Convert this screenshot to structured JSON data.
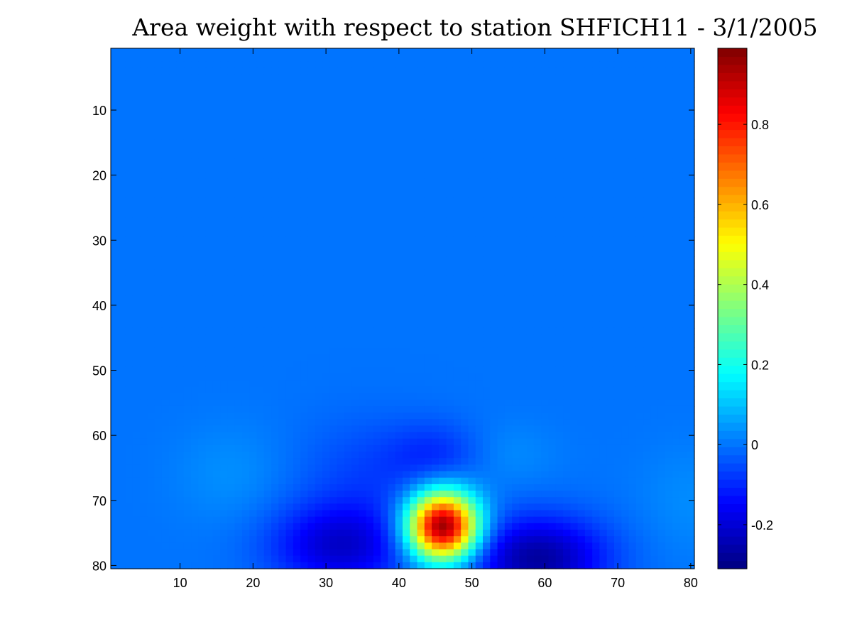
{
  "chart_data": {
    "type": "heatmap",
    "title": "Area weight with respect to station SHFICH11 - 3/1/2005",
    "xlabel": "",
    "ylabel": "",
    "xlim": [
      0.5,
      80.5
    ],
    "ylim": [
      0.5,
      80.5
    ],
    "y_direction": "reversed",
    "grid": false,
    "colormap": "jet",
    "x_ticks": [
      10,
      20,
      30,
      40,
      50,
      60,
      70,
      80
    ],
    "y_ticks": [
      10,
      20,
      30,
      40,
      50,
      60,
      70,
      80
    ],
    "grid_size": [
      80,
      80
    ],
    "background_value": 0.0,
    "value_range": [
      -0.31,
      0.99
    ],
    "colorbar": {
      "range": [
        -0.31,
        0.99
      ],
      "ticks": [
        "0.8",
        "0.6",
        "0.4",
        "0.2",
        "0",
        "-0.2"
      ],
      "tick_values": [
        0.8,
        0.6,
        0.4,
        0.2,
        0,
        -0.2
      ]
    },
    "features": [
      {
        "kind": "peak",
        "x": 46,
        "y": 74,
        "value": 0.99,
        "sx": 3.3,
        "sy": 3.6
      },
      {
        "kind": "trough",
        "x": 59,
        "y": 79,
        "value": -0.27,
        "sx": 6.5,
        "sy": 4.5
      },
      {
        "kind": "trough",
        "x": 32,
        "y": 77,
        "value": -0.21,
        "sx": 6.5,
        "sy": 4.5
      },
      {
        "kind": "trough",
        "x": 45,
        "y": 63,
        "value": -0.08,
        "sx": 4.5,
        "sy": 3.5
      },
      {
        "kind": "trough",
        "x": 36,
        "y": 66,
        "value": -0.06,
        "sx": 7,
        "sy": 6
      },
      {
        "kind": "bump",
        "x": 17,
        "y": 66,
        "value": 0.035,
        "sx": 5.5,
        "sy": 5.5
      },
      {
        "kind": "bump",
        "x": 55,
        "y": 63,
        "value": 0.03,
        "sx": 4.5,
        "sy": 3.5
      },
      {
        "kind": "bump",
        "x": 80,
        "y": 70,
        "value": 0.03,
        "sx": 5,
        "sy": 6
      }
    ]
  }
}
